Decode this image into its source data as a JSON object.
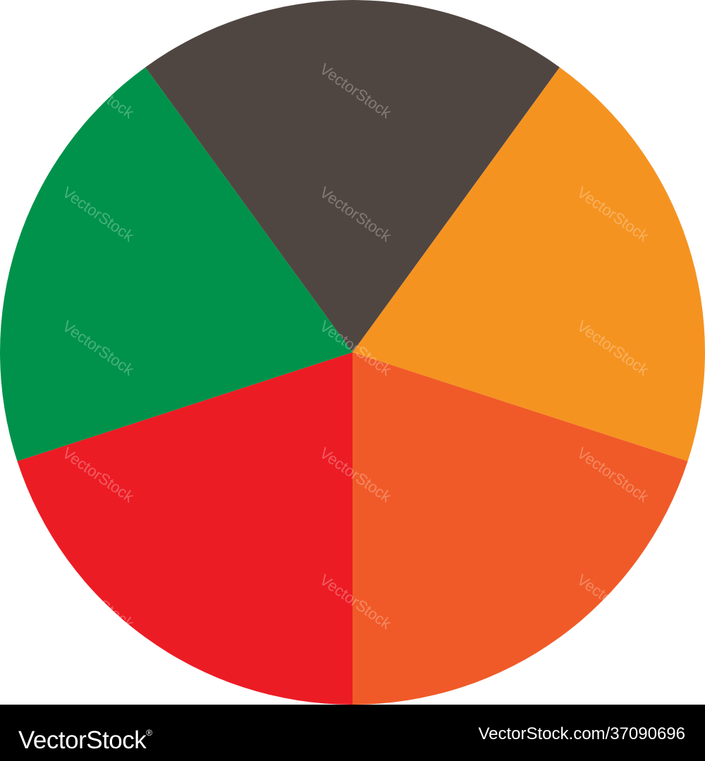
{
  "chart_data": {
    "type": "pie",
    "title": "",
    "slices": [
      {
        "value": 20,
        "color": "#504641"
      },
      {
        "value": 20,
        "color": "#F59321"
      },
      {
        "value": 20,
        "color": "#F05A28"
      },
      {
        "value": 20,
        "color": "#EC1C24"
      },
      {
        "value": 20,
        "color": "#00924A"
      }
    ],
    "start_angle_deg": -36,
    "direction": "clockwise",
    "legend": "none",
    "data_labels": "none"
  },
  "watermark": {
    "text": "VectorStock"
  },
  "footer": {
    "brand": "VectorStock",
    "registered_mark": "®",
    "url": "VectorStock.com/37090696"
  }
}
